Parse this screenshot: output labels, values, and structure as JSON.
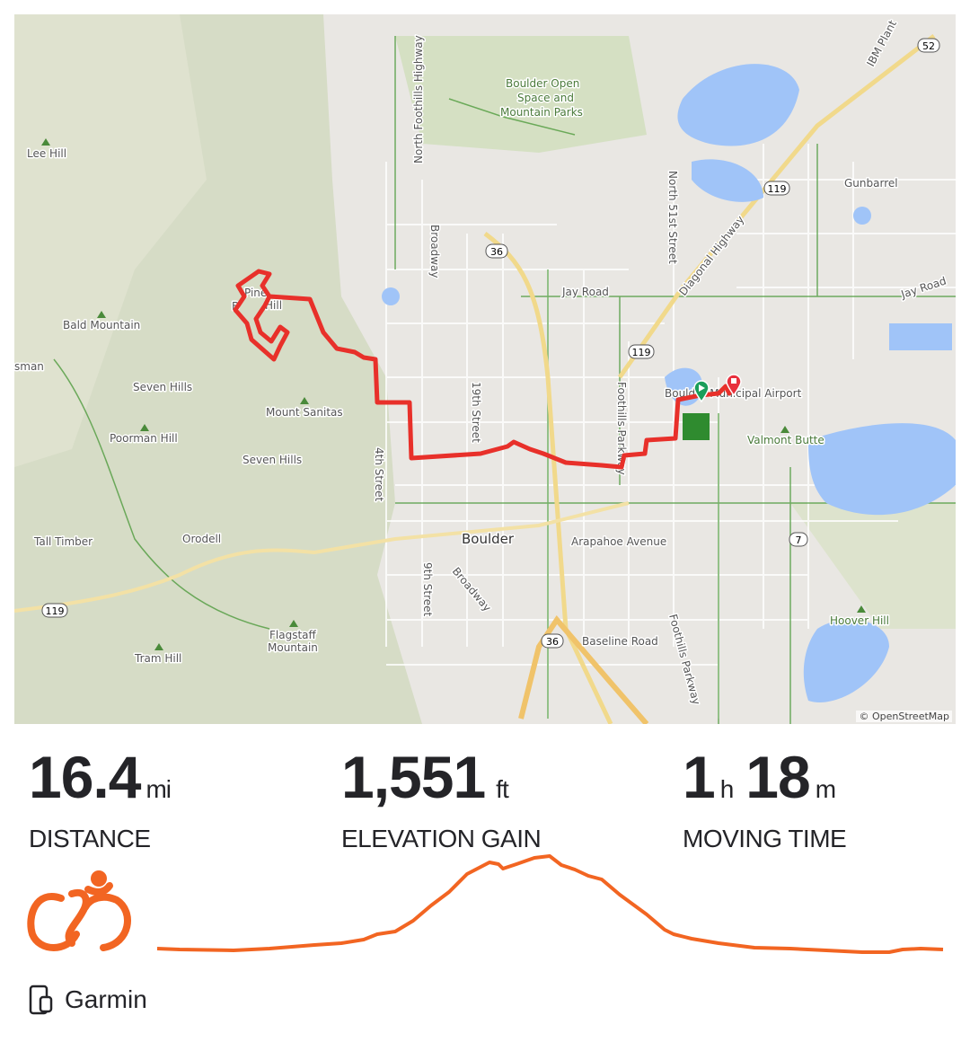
{
  "map": {
    "attribution": "© OpenStreetMap",
    "labels": {
      "lee_hill": "Lee Hill",
      "bald_mountain": "Bald Mountain",
      "sman": "sman",
      "seven_hills_1": "Seven Hills",
      "poorman_hill": "Poorman Hill",
      "mount_sanitas": "Mount Sanitas",
      "seven_hills_2": "Seven Hills",
      "tall_timber": "Tall Timber",
      "orodell": "Orodell",
      "flagstaff": "Flagstaff",
      "flagstaff2": "Mountain",
      "tram_hill": "Tram Hill",
      "boulder": "Boulder",
      "osmp1": "Boulder Open",
      "osmp2": "Space and",
      "osmp3": "Mountain Parks",
      "north_foothills": "North Foothills Highway",
      "broadway_n": "Broadway",
      "jay_road": "Jay Road",
      "jay_road_e": "Jay Road",
      "north_51st": "North 51st Street",
      "diagonal": "Diagonal Highway",
      "ibm": "IBM Plant",
      "gunbarrel": "Gunbarrel",
      "nineteenth": "19th Street",
      "fourth": "4th Street",
      "ninth": "9th Street",
      "broadway_s": "Broadway",
      "foothills_pkwy": "Foothills Parkway",
      "foothills_pkwy_s": "Foothills Parkway",
      "arapahoe": "Arapahoe Avenue",
      "baseline": "Baseline Road",
      "valmont_butte": "Valmont Butte",
      "hoover_hill": "Hoover Hill",
      "airport": "Boulder Municipal Airport",
      "pine": "Pine",
      "hill": "Hill",
      "b": "B",
      "shield_36a": "36",
      "shield_36b": "36",
      "shield_119a": "119",
      "shield_119b": "119",
      "shield_119c": "119",
      "shield_52": "52",
      "shield_7": "7"
    },
    "route_color": "#e8302a",
    "start_marker_color": "#1a9e5a",
    "end_marker_color": "#e8303d"
  },
  "stats": [
    {
      "value": "16.4",
      "unit": "mi",
      "label": "DISTANCE"
    },
    {
      "value": "1,551",
      "unit": "ft",
      "label": "ELEVATION GAIN"
    },
    {
      "value": "1",
      "unit": "h",
      "value2": "18",
      "unit2": "m",
      "label": "MOVING TIME"
    }
  ],
  "activity": {
    "type_icon": "cycling-icon",
    "accent": "#f26522"
  },
  "device": {
    "icon": "device-icon",
    "name": "Garmin"
  }
}
